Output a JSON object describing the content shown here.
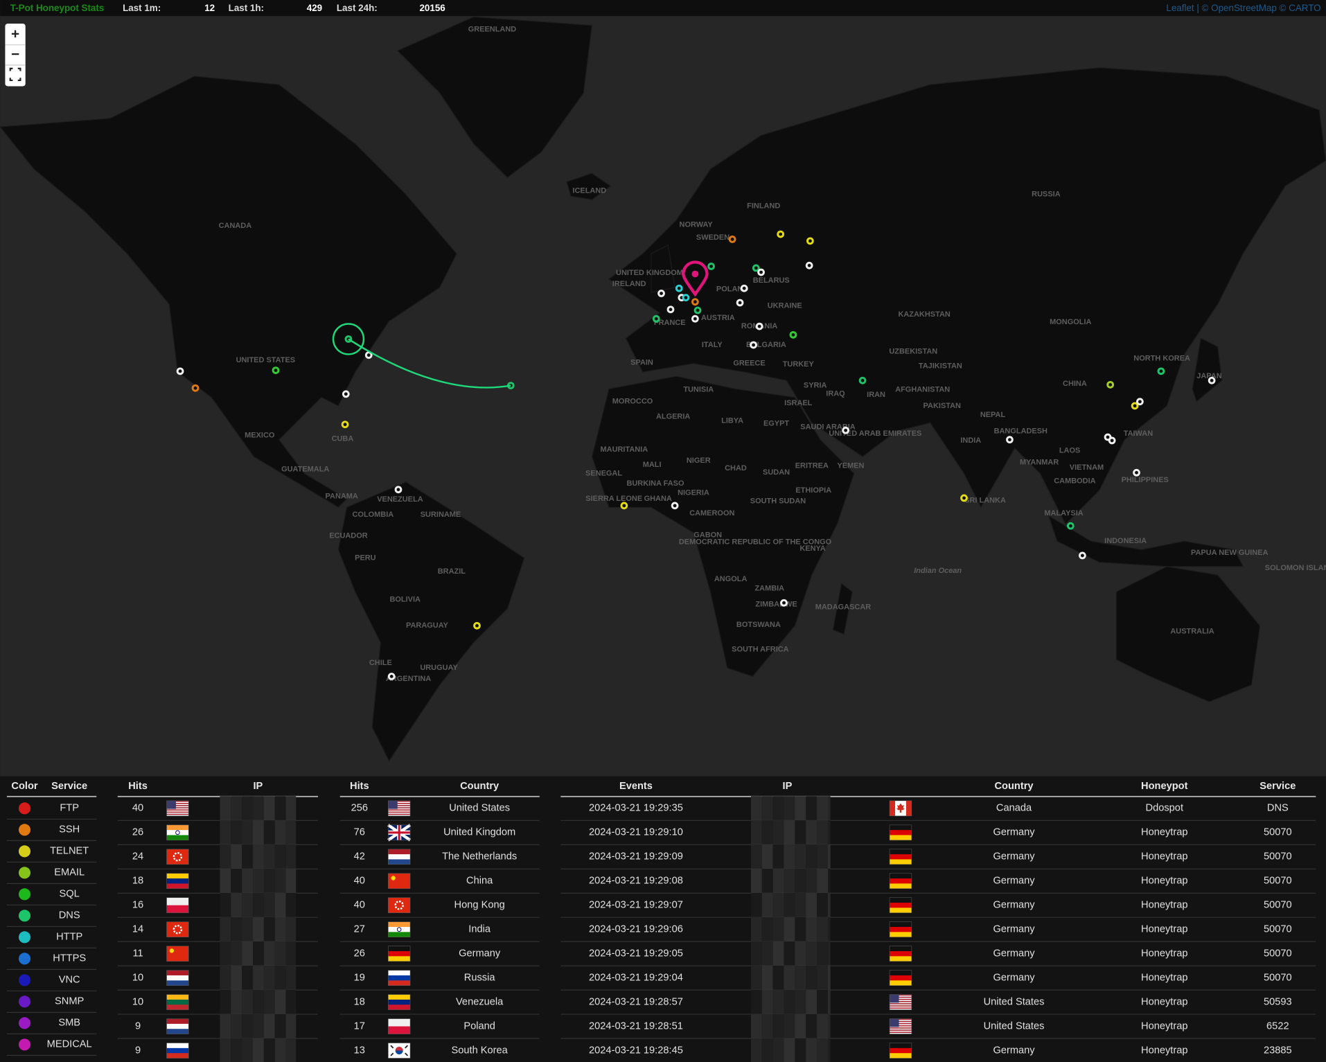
{
  "header": {
    "title": "T-Pot Honeypot Stats",
    "stats": [
      {
        "label": "Last 1m:",
        "value": 12
      },
      {
        "label": "Last 1h:",
        "value": 429
      },
      {
        "label": "Last 24h:",
        "value": 20156
      }
    ]
  },
  "map": {
    "zoom_in": "+",
    "zoom_out": "−",
    "attribution": "Leaflet | © OpenStreetMap © CARTO",
    "labels": [
      "GREENLAND",
      "ICELAND",
      "CANADA",
      "NORWAY",
      "SWEDEN",
      "FINLAND",
      "RUSSIA",
      "UNITED KINGDOM",
      "IRELAND",
      "POLAND",
      "BELARUS",
      "UKRAINE",
      "FRANCE",
      "AUSTRIA",
      "ROMANIA",
      "KAZAKHSTAN",
      "MONGOLIA",
      "ITALY",
      "BULGARIA",
      "GREECE",
      "TURKEY",
      "SPAIN",
      "UZBEKISTAN",
      "TAJIKISTAN",
      "UNITED STATES",
      "NORTH KOREA",
      "JAPAN",
      "CHINA",
      "SYRIA",
      "IRAQ",
      "IRAN",
      "AFGHANISTAN",
      "TUNISIA",
      "MOROCCO",
      "ISRAEL",
      "PAKISTAN",
      "ALGERIA",
      "LIBYA",
      "EGYPT",
      "NEPAL",
      "SAUDI ARABIA",
      "UNITED ARAB EMIRATES",
      "BANGLADESH",
      "MEXICO",
      "CUBA",
      "INDIA",
      "TAIWAN",
      "MYANMAR",
      "LAOS",
      "MAURITANIA",
      "MALI",
      "NIGER",
      "CHAD",
      "SUDAN",
      "ERITREA",
      "YEMEN",
      "GUATEMALA",
      "VIETNAM",
      "SENEGAL",
      "BURKINA FASO",
      "NIGERIA",
      "ETHIOPIA",
      "CAMBODIA",
      "PHILIPPINES",
      "PANAMA",
      "VENEZUELA",
      "SIERRA LEONE",
      "GHANA",
      "SOUTH SUDAN",
      "SRI LANKA",
      "COLOMBIA",
      "SURINAME",
      "CAMEROON",
      "MALAYSIA",
      "KENYA",
      "GABON",
      "DEMOCRATIC REPUBLIC OF THE CONGO",
      "INDONESIA",
      "PAPUA NEW GUINEA",
      "ECUADOR",
      "PERU",
      "BRAZIL",
      "Indian Ocean",
      "ANGOLA",
      "ZAMBIA",
      "BOLIVIA",
      "ZIMBABWE",
      "MADAGASCAR",
      "PARAGUAY",
      "BOTSWANA",
      "AUSTRALIA",
      "SOUTH AFRICA",
      "URUGUAY",
      "CHILE",
      "ARGENTINA",
      "SOLOMON ISLANDS"
    ]
  },
  "legend": {
    "headers": [
      "Color",
      "Service"
    ],
    "rows": [
      {
        "service": "FTP",
        "color": "#d81c1c"
      },
      {
        "service": "SSH",
        "color": "#e07a10"
      },
      {
        "service": "TELNET",
        "color": "#d6cc1a"
      },
      {
        "service": "EMAIL",
        "color": "#86c41a"
      },
      {
        "service": "SQL",
        "color": "#1cb81c"
      },
      {
        "service": "DNS",
        "color": "#1ec46a"
      },
      {
        "service": "HTTP",
        "color": "#1cbcc0"
      },
      {
        "service": "HTTPS",
        "color": "#1a6fd0"
      },
      {
        "service": "VNC",
        "color": "#1a1ab8"
      },
      {
        "service": "SNMP",
        "color": "#6a1ac4"
      },
      {
        "service": "SMB",
        "color": "#9a1ac4"
      },
      {
        "service": "MEDICAL",
        "color": "#c41ab0"
      }
    ]
  },
  "top_ips": {
    "headers": [
      "Hits",
      "IP"
    ],
    "rows": [
      {
        "hits": 40
      },
      {
        "hits": 26
      },
      {
        "hits": 24
      },
      {
        "hits": 18
      },
      {
        "hits": 16
      },
      {
        "hits": 14
      },
      {
        "hits": 11
      },
      {
        "hits": 10
      },
      {
        "hits": 10
      },
      {
        "hits": 9
      },
      {
        "hits": 9
      }
    ]
  },
  "top_countries": {
    "headers": [
      "Hits",
      "Country"
    ],
    "rows": [
      {
        "hits": 256,
        "country": "United States"
      },
      {
        "hits": 76,
        "country": "United Kingdom"
      },
      {
        "hits": 42,
        "country": "The Netherlands"
      },
      {
        "hits": 40,
        "country": "China"
      },
      {
        "hits": 40,
        "country": "Hong Kong"
      },
      {
        "hits": 27,
        "country": "India"
      },
      {
        "hits": 26,
        "country": "Germany"
      },
      {
        "hits": 19,
        "country": "Russia"
      },
      {
        "hits": 18,
        "country": "Venezuela"
      },
      {
        "hits": 17,
        "country": "Poland"
      },
      {
        "hits": 13,
        "country": "South Korea"
      }
    ]
  },
  "events": {
    "headers": [
      "Events",
      "IP",
      "Country",
      "Honeypot",
      "Service"
    ],
    "rows": [
      {
        "time": "2024-03-21 19:29:35",
        "country": "Canada",
        "honeypot": "Ddospot",
        "service": "DNS"
      },
      {
        "time": "2024-03-21 19:29:10",
        "country": "Germany",
        "honeypot": "Honeytrap",
        "service": "50070"
      },
      {
        "time": "2024-03-21 19:29:09",
        "country": "Germany",
        "honeypot": "Honeytrap",
        "service": "50070"
      },
      {
        "time": "2024-03-21 19:29:08",
        "country": "Germany",
        "honeypot": "Honeytrap",
        "service": "50070"
      },
      {
        "time": "2024-03-21 19:29:07",
        "country": "Germany",
        "honeypot": "Honeytrap",
        "service": "50070"
      },
      {
        "time": "2024-03-21 19:29:06",
        "country": "Germany",
        "honeypot": "Honeytrap",
        "service": "50070"
      },
      {
        "time": "2024-03-21 19:29:05",
        "country": "Germany",
        "honeypot": "Honeytrap",
        "service": "50070"
      },
      {
        "time": "2024-03-21 19:29:04",
        "country": "Germany",
        "honeypot": "Honeytrap",
        "service": "50070"
      },
      {
        "time": "2024-03-21 19:28:57",
        "country": "United States",
        "honeypot": "Honeytrap",
        "service": "50593"
      },
      {
        "time": "2024-03-21 19:28:51",
        "country": "United States",
        "honeypot": "Honeytrap",
        "service": "6522"
      },
      {
        "time": "2024-03-21 19:28:45",
        "country": "Germany",
        "honeypot": "Honeytrap",
        "service": "23885"
      }
    ]
  }
}
